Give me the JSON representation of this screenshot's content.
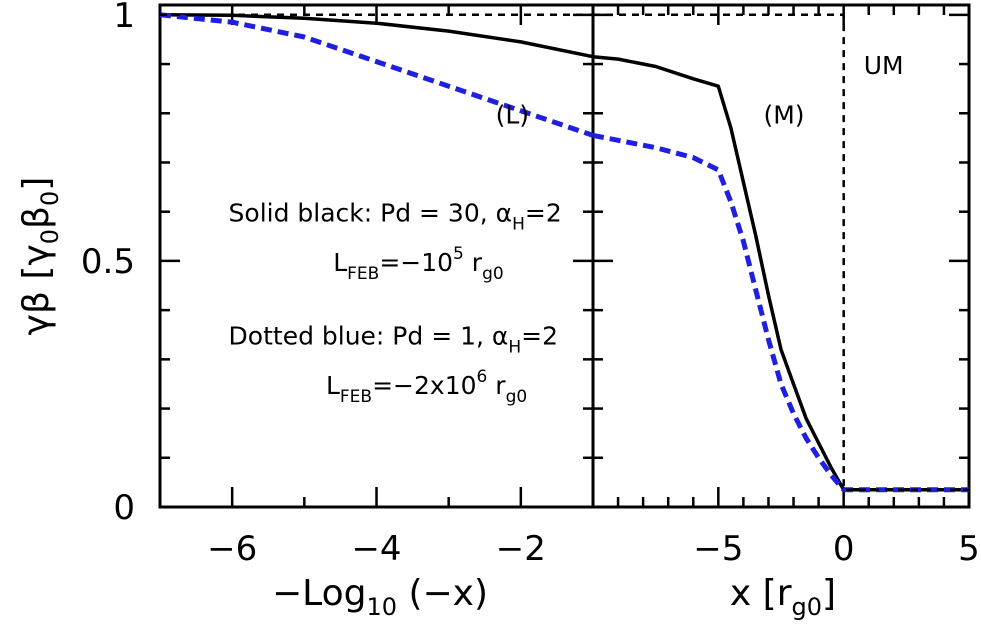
{
  "chart_data": [
    {
      "type": "line",
      "panel": "left",
      "xlabel": "−Log",
      "xlabel_sub": "10",
      "xlabel_tail": " (−x)",
      "ylabel": "γβ [γ",
      "ylabel_sub1": "0",
      "ylabel_mid": "β",
      "ylabel_sub2": "0",
      "ylabel_tail": "]",
      "xlim": [
        -7,
        -1
      ],
      "ylim": [
        0,
        1.02
      ],
      "x_ticks": [
        -6,
        -4,
        -2
      ],
      "x_tick_labels": [
        "−6",
        "−4",
        "−2"
      ],
      "y_ticks": [
        0,
        0.5,
        1
      ],
      "y_tick_labels": [
        "0",
        "0.5",
        "1"
      ],
      "series": [
        {
          "style": "solid",
          "color": "#000000",
          "x": [
            -7,
            -6,
            -5,
            -4,
            -3,
            -2,
            -1
          ],
          "y": [
            1.0,
            0.999,
            0.993,
            0.983,
            0.967,
            0.945,
            0.915
          ]
        },
        {
          "style": "dashed",
          "color": "#1f1fe0",
          "x": [
            -7,
            -6,
            -5,
            -4,
            -3,
            -2,
            -1
          ],
          "y": [
            1.0,
            0.985,
            0.955,
            0.905,
            0.855,
            0.805,
            0.755
          ]
        },
        {
          "style": "dotted-thin",
          "color": "#000000",
          "x": [
            -7,
            -1
          ],
          "y": [
            1.0,
            1.0
          ]
        }
      ],
      "annotations": [
        {
          "text": "(L)",
          "x": -2.35,
          "y": 0.8
        },
        {
          "text": "Solid black: Pd = 30, α",
          "sub": "H",
          "tail": "=2",
          "x": -6.05,
          "y": 0.6
        },
        {
          "text": "L",
          "sub": "FEB",
          "tail": "=−10",
          "sup": "5",
          "tail2": " r",
          "sub2": "g0",
          "x": -4.6,
          "y": 0.5
        },
        {
          "text": "Dotted blue: Pd = 1, α",
          "sub": "H",
          "tail": "=2",
          "x": -6.05,
          "y": 0.35
        },
        {
          "text": "L",
          "sub": "FEB",
          "tail": "=−2x10",
          "sup": "6",
          "tail2": " r",
          "sub2": "g0",
          "x": -4.7,
          "y": 0.25
        }
      ]
    },
    {
      "type": "line",
      "panel": "right",
      "xlabel": "x [r",
      "xlabel_sub": "g0",
      "xlabel_tail": "]",
      "xlim": [
        -10,
        5
      ],
      "ylim": [
        0,
        1.02
      ],
      "x_ticks": [
        -5,
        0,
        5
      ],
      "x_tick_labels": [
        "−5",
        "0",
        "5"
      ],
      "series": [
        {
          "style": "solid",
          "color": "#000000",
          "x": [
            -10,
            -9,
            -7.5,
            -6,
            -5,
            -4.5,
            -4,
            -3.5,
            -3,
            -2.5,
            -2,
            -1.5,
            -1,
            -0.5,
            0,
            2,
            5
          ],
          "y": [
            0.915,
            0.91,
            0.895,
            0.87,
            0.855,
            0.77,
            0.66,
            0.55,
            0.43,
            0.32,
            0.25,
            0.18,
            0.13,
            0.08,
            0.035,
            0.035,
            0.035
          ]
        },
        {
          "style": "dashed",
          "color": "#1f1fe0",
          "x": [
            -10,
            -9,
            -7.5,
            -6,
            -5,
            -4.5,
            -4,
            -3.5,
            -3,
            -2.5,
            -2,
            -1.5,
            -1,
            -0.5,
            0,
            2,
            5
          ],
          "y": [
            0.755,
            0.745,
            0.73,
            0.71,
            0.685,
            0.62,
            0.54,
            0.44,
            0.34,
            0.25,
            0.19,
            0.14,
            0.1,
            0.065,
            0.035,
            0.035,
            0.035
          ]
        },
        {
          "style": "dotted-thin",
          "color": "#000000",
          "x": [
            -10,
            0,
            0,
            5
          ],
          "y": [
            1.0,
            1.0,
            0.035,
            0.035
          ]
        }
      ],
      "annotations": [
        {
          "text": "(M)",
          "x": -3.2,
          "y": 0.8
        },
        {
          "text": "UM",
          "x": 0.8,
          "y": 0.9
        }
      ]
    }
  ]
}
